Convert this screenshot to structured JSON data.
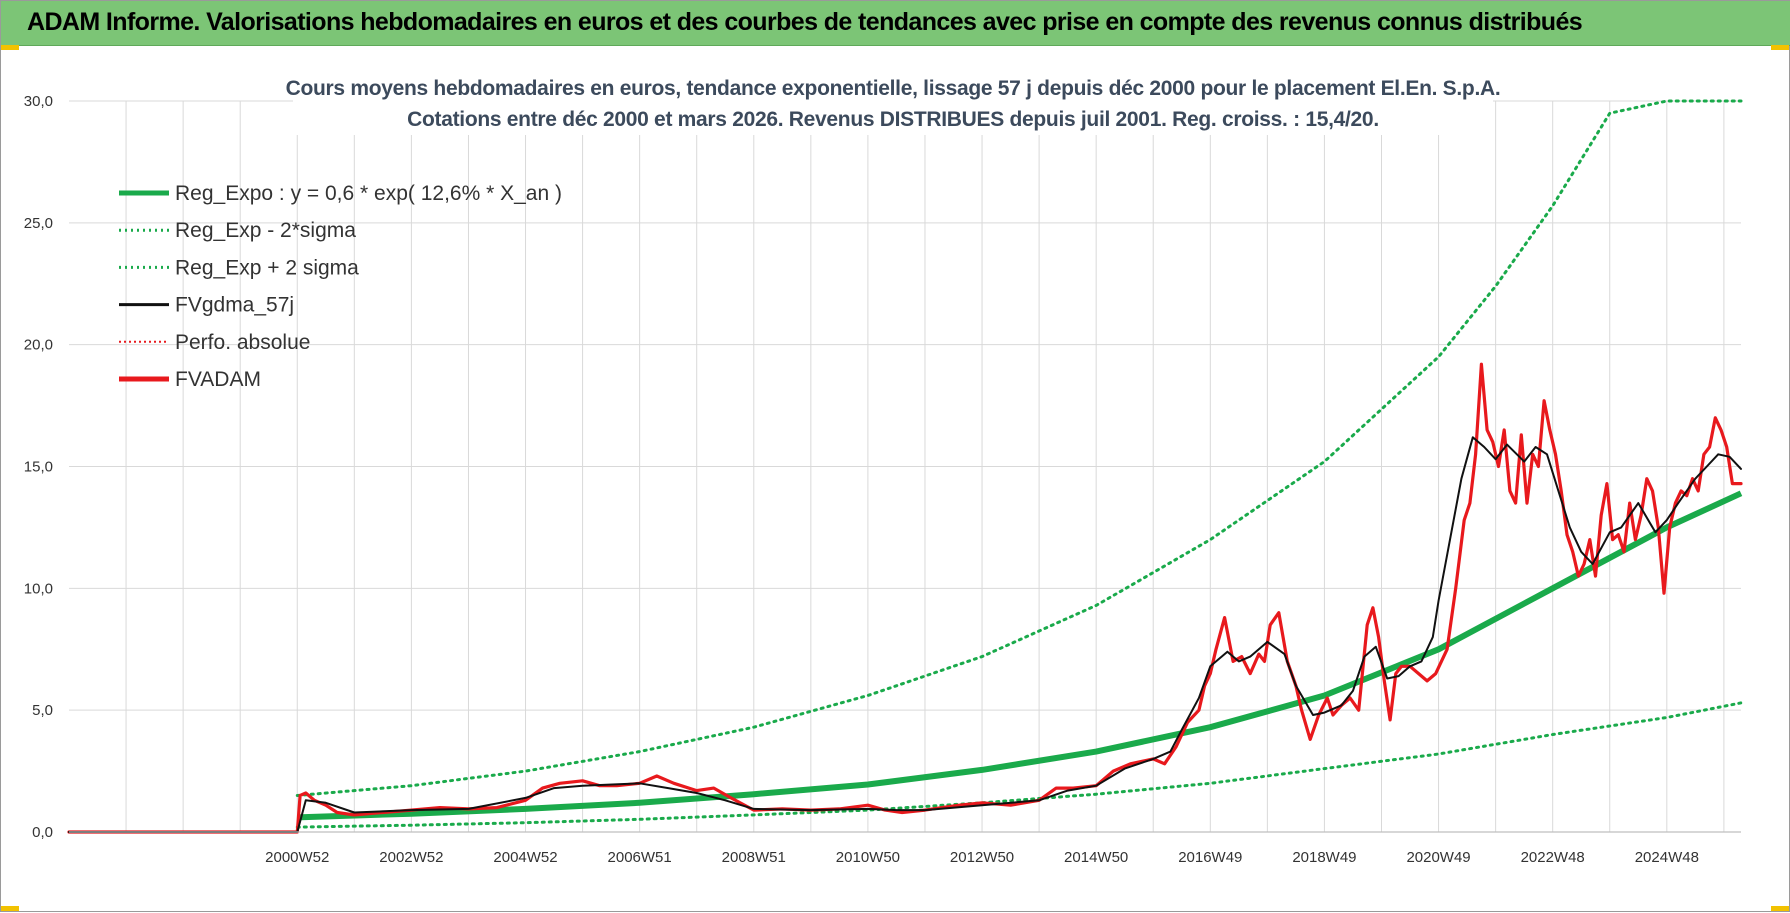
{
  "banner": {
    "title": "ADAM Informe. Valorisations hebdomadaires en euros et des courbes de tendances avec prise en compte des revenus connus distribués"
  },
  "colors": {
    "banner_bg": "#7cc576",
    "green": "#1aaa4b",
    "red": "#e8191d",
    "black": "#111111",
    "grid": "#d9d9d9"
  },
  "chart_data": {
    "type": "line",
    "title_lines": [
      "Cours moyens hebdomadaires en euros, tendance exponentielle, lissage 57 j depuis déc 2000 pour le placement El.En. S.p.A.",
      "Cotations entre déc 2000 et mars 2026.  Revenus DISTRIBUES depuis juil 2001.  Reg. croiss. : 15,4/20."
    ],
    "x_tick_labels": [
      "2000W52",
      "2002W52",
      "2004W52",
      "2006W51",
      "2008W51",
      "2010W50",
      "2012W50",
      "2014W50",
      "2016W49",
      "2018W49",
      "2020W49",
      "2022W48",
      "2024W48"
    ],
    "x_tick_years": [
      2001.0,
      2003.0,
      2005.0,
      2007.0,
      2009.0,
      2011.0,
      2013.0,
      2015.0,
      2017.0,
      2019.0,
      2021.0,
      2023.0,
      2025.0
    ],
    "x_range": [
      1997.0,
      2026.3
    ],
    "y_ticks": [
      "0,0",
      "5,0",
      "10,0",
      "15,0",
      "20,0",
      "25,0",
      "30,0"
    ],
    "ylim": [
      0,
      30
    ],
    "legend_position": "top-left",
    "legend": [
      {
        "label": "Reg_Expo : y = 0,6 * exp( 12,6% *  X_an )",
        "color": "#1aaa4b",
        "style": "solid-thick"
      },
      {
        "label": "Reg_Exp - 2*sigma",
        "color": "#1aaa4b",
        "style": "dotted"
      },
      {
        "label": "Reg_Exp + 2 sigma",
        "color": "#1aaa4b",
        "style": "dotted"
      },
      {
        "label": "FVgdma_57j",
        "color": "#111111",
        "style": "solid"
      },
      {
        "label": "Perfo. absolue",
        "color": "#e8191d",
        "style": "dotted-thin"
      },
      {
        "label": "FVADAM",
        "color": "#e8191d",
        "style": "solid-thick"
      }
    ],
    "series": [
      {
        "name": "Reg_Expo : y = 0,6 * exp( 12,6% *  X_an )",
        "kind": "trend",
        "x": [
          2001.0,
          2003.0,
          2005.0,
          2007.0,
          2009.0,
          2011.0,
          2013.0,
          2015.0,
          2017.0,
          2019.0,
          2021.0,
          2023.0,
          2025.0,
          2026.3
        ],
        "values": [
          0.6,
          0.75,
          0.95,
          1.2,
          1.55,
          1.95,
          2.55,
          3.3,
          4.3,
          5.6,
          7.5,
          10.0,
          12.5,
          13.9
        ]
      },
      {
        "name": "Reg_Exp - 2*sigma",
        "kind": "band_low",
        "x": [
          2001.0,
          2003.0,
          2005.0,
          2007.0,
          2009.0,
          2011.0,
          2013.0,
          2015.0,
          2017.0,
          2019.0,
          2021.0,
          2023.0,
          2025.0,
          2026.3
        ],
        "values": [
          0.2,
          0.28,
          0.38,
          0.52,
          0.7,
          0.9,
          1.2,
          1.55,
          2.0,
          2.6,
          3.2,
          4.0,
          4.7,
          5.3
        ]
      },
      {
        "name": "Reg_Exp + 2 sigma",
        "kind": "band_high",
        "x": [
          2001.0,
          2003.0,
          2005.0,
          2007.0,
          2009.0,
          2011.0,
          2013.0,
          2015.0,
          2017.0,
          2019.0,
          2021.0,
          2022.0,
          2023.0,
          2024.0,
          2025.0,
          2026.3
        ],
        "values": [
          1.5,
          1.9,
          2.5,
          3.3,
          4.3,
          5.6,
          7.2,
          9.3,
          12.0,
          15.2,
          19.5,
          22.4,
          25.7,
          29.5,
          30.0,
          30.0
        ]
      },
      {
        "name": "FVgdma_57j",
        "kind": "smooth",
        "x": [
          1997.0,
          2001.0,
          2001.15,
          2001.5,
          2002.0,
          2003.0,
          2004.0,
          2005.0,
          2005.5,
          2006.0,
          2007.0,
          2007.5,
          2008.0,
          2008.5,
          2009.0,
          2010.0,
          2011.0,
          2011.5,
          2012.0,
          2013.0,
          2014.0,
          2014.5,
          2015.0,
          2015.5,
          2016.0,
          2016.3,
          2016.5,
          2016.8,
          2017.0,
          2017.3,
          2017.5,
          2017.7,
          2018.0,
          2018.3,
          2018.5,
          2018.8,
          2019.0,
          2019.3,
          2019.5,
          2019.7,
          2019.9,
          2020.1,
          2020.3,
          2020.5,
          2020.7,
          2020.9,
          2021.0,
          2021.2,
          2021.4,
          2021.6,
          2021.8,
          2022.0,
          2022.2,
          2022.5,
          2022.7,
          2022.9,
          2023.1,
          2023.3,
          2023.5,
          2023.7,
          2024.0,
          2024.2,
          2024.5,
          2024.8,
          2025.0,
          2025.2,
          2025.5,
          2025.7,
          2025.9,
          2026.1,
          2026.3
        ],
        "values": [
          0,
          0,
          1.3,
          1.2,
          0.8,
          0.9,
          0.95,
          1.4,
          1.8,
          1.9,
          2.0,
          1.8,
          1.6,
          1.3,
          0.95,
          0.9,
          0.95,
          0.9,
          0.9,
          1.1,
          1.3,
          1.7,
          1.9,
          2.6,
          3.0,
          3.3,
          4.2,
          5.5,
          6.8,
          7.4,
          7.0,
          7.2,
          7.8,
          7.3,
          6.0,
          4.8,
          4.9,
          5.2,
          5.8,
          7.2,
          7.6,
          6.3,
          6.4,
          6.8,
          7.0,
          8.0,
          9.5,
          12.0,
          14.5,
          16.2,
          15.8,
          15.3,
          15.9,
          15.2,
          15.8,
          15.5,
          14.0,
          12.5,
          11.5,
          11.0,
          12.3,
          12.5,
          13.5,
          12.3,
          12.8,
          13.5,
          14.5,
          15.0,
          15.5,
          15.4,
          14.9
        ]
      },
      {
        "name": "FVADAM",
        "kind": "price",
        "x": [
          1997.0,
          2001.0,
          2001.05,
          2001.15,
          2001.3,
          2001.5,
          2001.7,
          2002.0,
          2002.5,
          2003.0,
          2003.5,
          2004.0,
          2004.5,
          2005.0,
          2005.3,
          2005.6,
          2006.0,
          2006.3,
          2006.6,
          2007.0,
          2007.3,
          2007.6,
          2008.0,
          2008.3,
          2008.6,
          2009.0,
          2009.5,
          2010.0,
          2010.5,
          2011.0,
          2011.3,
          2011.6,
          2012.0,
          2012.3,
          2012.6,
          2013.0,
          2013.5,
          2014.0,
          2014.3,
          2014.6,
          2015.0,
          2015.3,
          2015.6,
          2016.0,
          2016.2,
          2016.4,
          2016.6,
          2016.8,
          2016.9,
          2017.0,
          2017.1,
          2017.25,
          2017.4,
          2017.55,
          2017.7,
          2017.85,
          2017.95,
          2018.05,
          2018.2,
          2018.35,
          2018.5,
          2018.6,
          2018.75,
          2018.9,
          2019.05,
          2019.15,
          2019.3,
          2019.45,
          2019.6,
          2019.75,
          2019.85,
          2019.95,
          2020.05,
          2020.15,
          2020.25,
          2020.35,
          2020.5,
          2020.65,
          2020.8,
          2020.95,
          2021.05,
          2021.15,
          2021.3,
          2021.45,
          2021.55,
          2021.65,
          2021.75,
          2021.85,
          2021.95,
          2022.05,
          2022.15,
          2022.25,
          2022.35,
          2022.45,
          2022.55,
          2022.65,
          2022.75,
          2022.85,
          2022.95,
          2023.05,
          2023.15,
          2023.25,
          2023.35,
          2023.45,
          2023.55,
          2023.65,
          2023.75,
          2023.85,
          2023.95,
          2024.05,
          2024.15,
          2024.25,
          2024.35,
          2024.45,
          2024.55,
          2024.65,
          2024.75,
          2024.85,
          2024.95,
          2025.05,
          2025.15,
          2025.25,
          2025.35,
          2025.45,
          2025.55,
          2025.65,
          2025.75,
          2025.85,
          2025.95,
          2026.05,
          2026.15,
          2026.3
        ],
        "values": [
          0,
          0,
          1.5,
          1.6,
          1.3,
          1.1,
          0.8,
          0.7,
          0.8,
          0.9,
          1.0,
          0.95,
          1.0,
          1.3,
          1.8,
          2.0,
          2.1,
          1.9,
          1.9,
          2.0,
          2.3,
          2.0,
          1.7,
          1.8,
          1.4,
          0.9,
          0.95,
          0.9,
          0.95,
          1.1,
          0.9,
          0.8,
          0.9,
          1.0,
          1.1,
          1.2,
          1.1,
          1.3,
          1.8,
          1.8,
          1.9,
          2.5,
          2.8,
          3.0,
          2.8,
          3.5,
          4.5,
          5.0,
          6.0,
          6.5,
          7.5,
          8.8,
          7.0,
          7.2,
          6.5,
          7.3,
          7.0,
          8.5,
          9.0,
          7.0,
          6.0,
          5.0,
          3.8,
          4.8,
          5.5,
          4.8,
          5.2,
          5.5,
          5.0,
          8.5,
          9.2,
          8.0,
          6.2,
          4.6,
          6.5,
          6.8,
          6.8,
          6.5,
          6.2,
          6.5,
          7.0,
          7.5,
          10.0,
          12.8,
          13.5,
          15.5,
          19.2,
          16.5,
          16.0,
          15.0,
          16.5,
          14.0,
          13.5,
          16.3,
          13.5,
          15.5,
          15.0,
          17.7,
          16.5,
          15.5,
          14.0,
          12.2,
          11.5,
          10.5,
          11.0,
          12.0,
          10.5,
          13.0,
          14.3,
          12.0,
          12.2,
          11.5,
          13.5,
          12.0,
          13.0,
          14.5,
          14.0,
          12.5,
          9.8,
          12.5,
          13.5,
          14.0,
          13.8,
          14.5,
          14.0,
          15.5,
          15.8,
          17.0,
          16.5,
          15.8,
          14.3,
          14.3
        ]
      }
    ]
  }
}
